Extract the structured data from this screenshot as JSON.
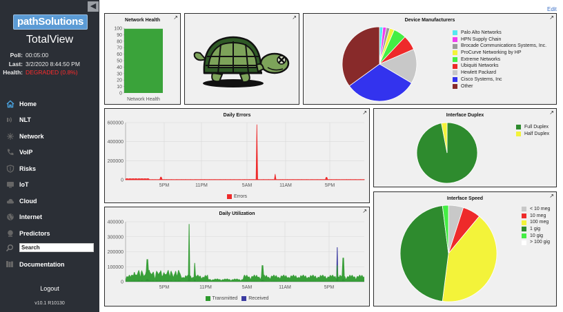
{
  "sidebar": {
    "logo": "pathSolutions",
    "product": "TotalView",
    "stats": [
      {
        "label": "Poll:",
        "value": "00:05:00",
        "status": "normal"
      },
      {
        "label": "Last:",
        "value": "3/2/2020 8:44:50 PM",
        "status": "normal"
      },
      {
        "label": "Health:",
        "value": "DEGRADED (0.8%)",
        "status": "bad"
      }
    ],
    "nav": [
      {
        "label": "Home",
        "icon": "home-icon",
        "active": true
      },
      {
        "label": "NLT",
        "icon": "nlt-icon"
      },
      {
        "label": "Network",
        "icon": "network-icon"
      },
      {
        "label": "VoIP",
        "icon": "phone-icon"
      },
      {
        "label": "Risks",
        "icon": "shield-icon"
      },
      {
        "label": "IoT",
        "icon": "iot-icon"
      },
      {
        "label": "Cloud",
        "icon": "cloud-icon"
      },
      {
        "label": "Internet",
        "icon": "globe-icon"
      },
      {
        "label": "Predictors",
        "icon": "predictor-icon"
      }
    ],
    "search_placeholder": "Search",
    "documentation": "Documentation",
    "logout": "Logout",
    "version": "v10.1 R10130"
  },
  "edit_label": "Edit",
  "expand_glyph": "↗",
  "network_health": {
    "title": "Network Health",
    "bar_label": "Network Health",
    "value": 99.2,
    "ticks": [
      "100",
      "90",
      "80",
      "70",
      "60",
      "50",
      "40",
      "30",
      "20",
      "10",
      "0"
    ],
    "color": "#3aa33a"
  },
  "device_manufacturers": {
    "title": "Device Manufacturers",
    "items": [
      {
        "label": "Palo Alto Networks",
        "value": 1.5,
        "color": "#55e8f0"
      },
      {
        "label": "HPN Supply Chain",
        "value": 1.5,
        "color": "#f03cf0"
      },
      {
        "label": "Brocade Communications Systems, Inc.",
        "value": 1.5,
        "color": "#999999"
      },
      {
        "label": "ProCurve Networking by HP",
        "value": 2.0,
        "color": "#f3f33a"
      },
      {
        "label": "Extreme Networks",
        "value": 5.5,
        "color": "#44ee44"
      },
      {
        "label": "Ubiquiti Networks",
        "value": 6.5,
        "color": "#ee2a2a"
      },
      {
        "label": "Hewlett Packard",
        "value": 15.0,
        "color": "#c8c8c8"
      },
      {
        "label": "Cisco Systems, Inc",
        "value": 31.5,
        "color": "#3333ee"
      },
      {
        "label": "Other",
        "value": 35.0,
        "color": "#882a2a"
      }
    ]
  },
  "daily_errors": {
    "title": "Daily Errors",
    "y_ticks": [
      "600000",
      "400000",
      "200000",
      "0"
    ],
    "x_ticks": [
      "5PM",
      "11PM",
      "5AM",
      "11AM",
      "5PM"
    ],
    "legend": [
      {
        "label": "Errors",
        "color": "#ee2a2a"
      }
    ]
  },
  "daily_utilization": {
    "title": "Daily Utilization",
    "y_ticks": [
      "400000",
      "300000",
      "200000",
      "100000",
      "0"
    ],
    "x_ticks": [
      "5PM",
      "11PM",
      "5AM",
      "11AM",
      "5PM"
    ],
    "legend": [
      {
        "label": "Transmitted",
        "color": "#2e9a2e"
      },
      {
        "label": "Received",
        "color": "#3a3aa0"
      }
    ]
  },
  "interface_duplex": {
    "title": "Interface Duplex",
    "items": [
      {
        "label": "Full Duplex",
        "value": 97,
        "color": "#2e8b2e"
      },
      {
        "label": "Half Duplex",
        "value": 3,
        "color": "#f3f33a"
      }
    ]
  },
  "interface_speed": {
    "title": "Interface Speed",
    "items": [
      {
        "label": "< 10 meg",
        "value": 5,
        "color": "#c8c8c8"
      },
      {
        "label": "10 meg",
        "value": 6,
        "color": "#ee2a2a"
      },
      {
        "label": "100 meg",
        "value": 41,
        "color": "#f3f33a"
      },
      {
        "label": "1 gig",
        "value": 46,
        "color": "#2e8b2e"
      },
      {
        "label": "10 gig",
        "value": 2,
        "color": "#44ee44"
      },
      {
        "label": "> 100 gig",
        "value": 0,
        "color": "#ffffff"
      }
    ]
  }
}
